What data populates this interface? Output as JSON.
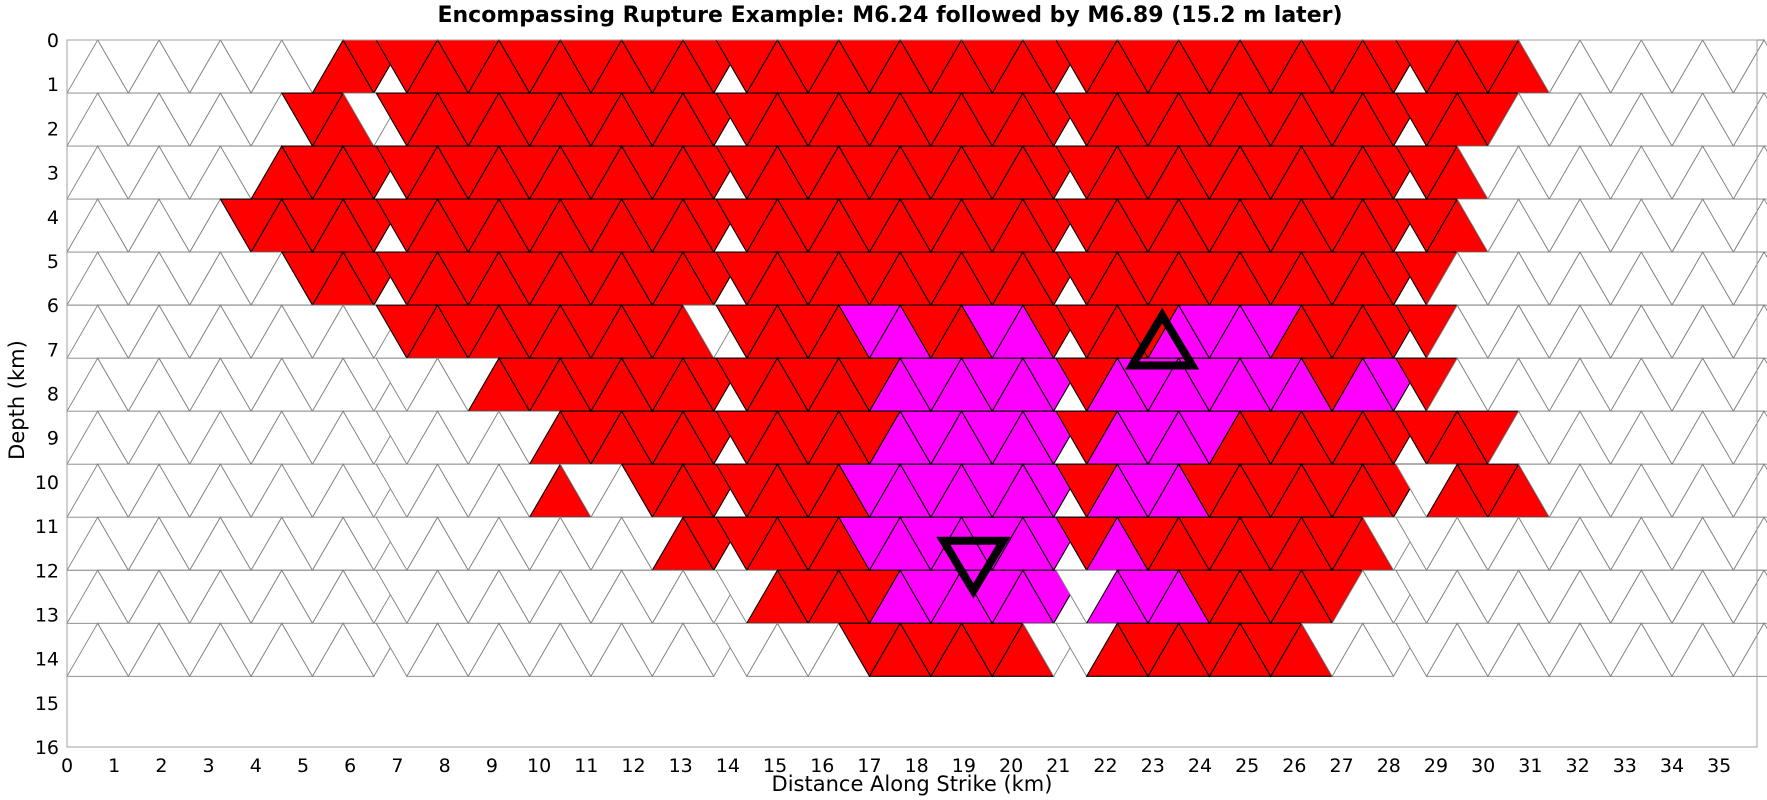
{
  "chart_data": {
    "type": "heatmap",
    "title": "Encompassing Rupture Example: M6.24 followed by M6.89 (15.2 m later)",
    "xlabel": "Distance Along Strike (km)",
    "ylabel": "Depth (km)",
    "xlim": [
      0,
      35.8
    ],
    "ylim": [
      16,
      0
    ],
    "xticks": [
      "0",
      "1",
      "2",
      "3",
      "4",
      "5",
      "6",
      "7",
      "8",
      "9",
      "10",
      "11",
      "12",
      "13",
      "14",
      "15",
      "16",
      "17",
      "18",
      "19",
      "20",
      "21",
      "22",
      "23",
      "24",
      "25",
      "26",
      "27",
      "28",
      "29",
      "30",
      "31",
      "32",
      "33",
      "34",
      "35"
    ],
    "yticks": [
      "0",
      "1",
      "2",
      "3",
      "4",
      "5",
      "6",
      "7",
      "8",
      "9",
      "10",
      "11",
      "12",
      "13",
      "14",
      "15",
      "16"
    ],
    "mesh": {
      "triangle_side_km": 1.3,
      "row_depth_km": 1.2,
      "n_rows": 12,
      "column_x_offsets_km": [
        0,
        7.2,
        14.4,
        21.6,
        28.8
      ],
      "column_periods": [
        6,
        5,
        6,
        6,
        5
      ],
      "column_step_offsets": [
        0,
        1,
        2,
        3,
        4
      ]
    },
    "legend": [
      {
        "label": "",
        "color": "#ff0000"
      },
      {
        "label": "",
        "color": "#ff00ff"
      },
      {
        "label": "",
        "color": "#ffffff"
      }
    ],
    "colors": {
      "first_event": "#ff0000",
      "second_event": "#ff00ff",
      "unruptured": "#ffffff",
      "unruptured_edge": "#808080",
      "ruptured_edge": "#000000",
      "hypocenter_marker": "#000000"
    },
    "hypocenters": [
      {
        "label": "M6.24",
        "x": 19.2,
        "y": 11.9,
        "symbol": "triangle-down"
      },
      {
        "label": "M6.89",
        "x": 23.2,
        "y": 6.8,
        "symbol": "triangle-up"
      }
    ],
    "cells": {
      "red": [
        [
          0,
          0,
          [
            [
              5.85,
              7.15
            ]
          ]
        ],
        [
          0,
          1,
          [
            [
              7.2,
              14.4
            ]
          ]
        ],
        [
          0,
          2,
          [
            [
              14.4,
              21.6
            ]
          ]
        ],
        [
          0,
          3,
          [
            [
              21.6,
              28.8
            ]
          ]
        ],
        [
          0,
          4,
          [
            [
              29.05,
              31.0
            ]
          ]
        ],
        [
          1,
          0,
          [
            [
              5.2,
              6.5
            ]
          ]
        ],
        [
          1,
          1,
          [
            [
              7.2,
              14.4
            ]
          ]
        ],
        [
          1,
          2,
          [
            [
              14.4,
              21.6
            ]
          ]
        ],
        [
          1,
          3,
          [
            [
              21.6,
              28.8
            ]
          ]
        ],
        [
          1,
          4,
          [
            [
              28.8,
              30.4
            ]
          ]
        ],
        [
          2,
          0,
          [
            [
              4.55,
              7.2
            ]
          ]
        ],
        [
          2,
          1,
          [
            [
              7.2,
              14.4
            ]
          ]
        ],
        [
          2,
          2,
          [
            [
              14.4,
              21.6
            ]
          ]
        ],
        [
          2,
          3,
          [
            [
              21.6,
              28.8
            ]
          ]
        ],
        [
          2,
          4,
          [
            [
              28.8,
              29.8
            ]
          ]
        ],
        [
          3,
          0,
          [
            [
              3.9,
              7.2
            ]
          ]
        ],
        [
          3,
          1,
          [
            [
              7.2,
              14.4
            ]
          ]
        ],
        [
          3,
          2,
          [
            [
              14.4,
              21.6
            ]
          ]
        ],
        [
          3,
          3,
          [
            [
              21.6,
              28.8
            ]
          ]
        ],
        [
          3,
          4,
          [
            [
              28.8,
              29.6
            ]
          ]
        ],
        [
          4,
          0,
          [
            [
              5.2,
              7.2
            ]
          ]
        ],
        [
          4,
          1,
          [
            [
              7.2,
              14.4
            ]
          ]
        ],
        [
          4,
          2,
          [
            [
              14.4,
              21.6
            ]
          ]
        ],
        [
          4,
          3,
          [
            [
              21.6,
              28.8
            ]
          ]
        ],
        [
          5,
          1,
          [
            [
              7.2,
              13.2
            ]
          ]
        ],
        [
          5,
          2,
          [
            [
              14.4,
              21.6
            ]
          ]
        ],
        [
          5,
          3,
          [
            [
              21.6,
              28.8
            ]
          ]
        ],
        [
          6,
          1,
          [
            [
              9.0,
              14.4
            ]
          ]
        ],
        [
          6,
          2,
          [
            [
              14.4,
              21.6
            ]
          ]
        ],
        [
          6,
          3,
          [
            [
              21.6,
              28.8
            ]
          ]
        ],
        [
          7,
          1,
          [
            [
              10.4,
              14.4
            ]
          ]
        ],
        [
          7,
          2,
          [
            [
              14.4,
              21.6
            ]
          ]
        ],
        [
          7,
          3,
          [
            [
              21.6,
              28.8
            ]
          ]
        ],
        [
          7,
          4,
          [
            [
              29.4,
              30.6
            ]
          ]
        ],
        [
          8,
          1,
          [
            [
              9.8,
              11.0
            ],
            [
              12.4,
              14.4
            ]
          ]
        ],
        [
          8,
          2,
          [
            [
              14.4,
              21.6
            ]
          ]
        ],
        [
          8,
          3,
          [
            [
              21.6,
              28.1
            ]
          ]
        ],
        [
          8,
          4,
          [
            [
              28.8,
              31.0
            ]
          ]
        ],
        [
          9,
          1,
          [
            [
              13.0,
              14.4
            ]
          ]
        ],
        [
          9,
          2,
          [
            [
              14.4,
              21.6
            ]
          ]
        ],
        [
          9,
          3,
          [
            [
              21.6,
              27.5
            ]
          ]
        ],
        [
          10,
          2,
          [
            [
              15.0,
              21.0
            ]
          ]
        ],
        [
          10,
          3,
          [
            [
              22.2,
              26.8
            ]
          ]
        ],
        [
          11,
          2,
          [
            [
              16.4,
              18.0
            ],
            [
              18.0,
              20.6
            ]
          ]
        ],
        [
          11,
          3,
          [
            [
              21.6,
              26.5
            ]
          ]
        ]
      ],
      "magenta": [
        [
          5,
          2,
          [
            [
              16.5,
              17.8
            ],
            [
              19.5,
              20.5
            ]
          ]
        ],
        [
          5,
          3,
          [
            [
              23.2,
              25.6
            ]
          ]
        ],
        [
          6,
          2,
          [
            [
              17.0,
              21.0
            ]
          ]
        ],
        [
          6,
          3,
          [
            [
              21.8,
              25.0
            ],
            [
              25.4,
              26.6
            ],
            [
              27.0,
              28.2
            ]
          ]
        ],
        [
          7,
          2,
          [
            [
              17.3,
              21.0
            ]
          ]
        ],
        [
          7,
          3,
          [
            [
              21.6,
              24.6
            ]
          ]
        ],
        [
          8,
          2,
          [
            [
              16.8,
              21.0
            ]
          ]
        ],
        [
          8,
          3,
          [
            [
              21.6,
              24.0
            ]
          ]
        ],
        [
          9,
          2,
          [
            [
              16.4,
              21.0
            ]
          ]
        ],
        [
          9,
          3,
          [
            [
              21.6,
              22.4
            ]
          ]
        ],
        [
          10,
          2,
          [
            [
              17.6,
              21.0
            ]
          ]
        ],
        [
          10,
          3,
          [
            [
              21.6,
              23.6
            ]
          ]
        ],
        [
          11,
          2,
          [
            [
              18.0,
              18.0
            ]
          ]
        ]
      ]
    }
  }
}
